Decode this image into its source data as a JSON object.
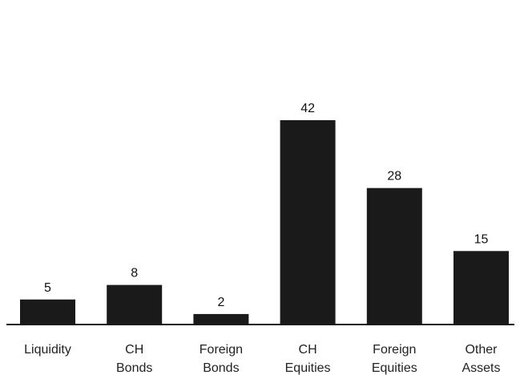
{
  "chart_data": {
    "type": "bar",
    "title": "",
    "xlabel": "",
    "ylabel": "",
    "categories": [
      [
        "Liquidity"
      ],
      [
        "CH",
        "Bonds"
      ],
      [
        "Foreign",
        "Bonds"
      ],
      [
        "CH",
        "Equities"
      ],
      [
        "Foreign",
        "Equities"
      ],
      [
        "Other",
        "Assets"
      ]
    ],
    "values": [
      5,
      8,
      2,
      42,
      28,
      15
    ],
    "value_labels": [
      "5",
      "8",
      "2",
      "42",
      "28",
      "15"
    ],
    "ylim": [
      0,
      42
    ],
    "grid": false,
    "legend": "none",
    "bar_color": "#1a1a1a",
    "axis_color": "#1a1a1a"
  }
}
